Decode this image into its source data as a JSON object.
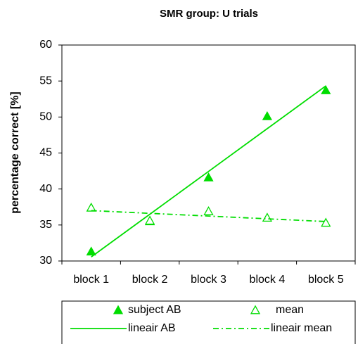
{
  "chart_data": {
    "type": "line",
    "title": "SMR group: U trials",
    "y_label": "percentage correct [%]",
    "categories": [
      "block 1",
      "block 2",
      "block 3",
      "block 4",
      "block 5"
    ],
    "series": [
      {
        "name": "subject AB",
        "color": "#00dd00",
        "marker": "triangle-filled",
        "line": "none",
        "values": [
          31.3,
          35.5,
          41.6,
          50.1,
          53.7
        ]
      },
      {
        "name": "mean",
        "color": "#00dd00",
        "marker": "triangle-open",
        "line": "none",
        "values": [
          37.4,
          35.6,
          36.9,
          36.0,
          35.3
        ]
      },
      {
        "name": "lineair AB",
        "color": "#00dd00",
        "marker": "none",
        "line": "solid",
        "values": [
          30.56,
          36.5,
          42.44,
          48.38,
          54.32
        ]
      },
      {
        "name": "lineair mean",
        "color": "#00dd00",
        "marker": "none",
        "line": "dashdot",
        "values": [
          37.0,
          36.62,
          36.24,
          35.86,
          35.48
        ]
      }
    ],
    "ylim": [
      30,
      60
    ],
    "yticks": [
      30,
      35,
      40,
      45,
      50,
      55,
      60
    ],
    "legend": "bottom"
  }
}
